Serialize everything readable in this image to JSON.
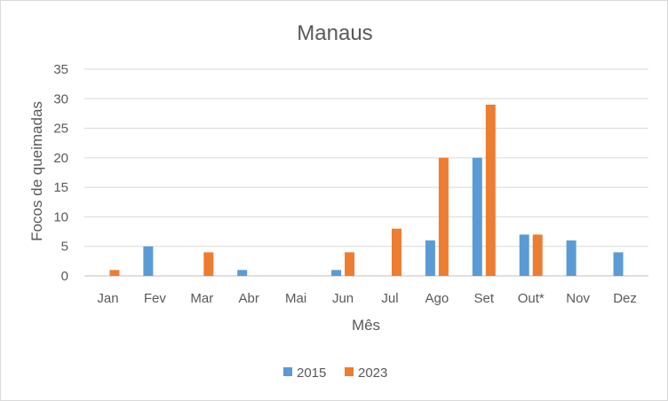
{
  "chart_data": {
    "type": "bar",
    "title": "Manaus",
    "xlabel": "Mês",
    "ylabel": "Focos de queimadas",
    "categories": [
      "Jan",
      "Fev",
      "Mar",
      "Abr",
      "Mai",
      "Jun",
      "Jul",
      "Ago",
      "Set",
      "Out*",
      "Nov",
      "Dez"
    ],
    "series": [
      {
        "name": "2015",
        "color": "#5b9bd5",
        "values": [
          0,
          5,
          0,
          1,
          0,
          1,
          0,
          6,
          20,
          7,
          6,
          4
        ]
      },
      {
        "name": "2023",
        "color": "#ed7d31",
        "values": [
          1,
          0,
          4,
          0,
          0,
          4,
          8,
          20,
          29,
          7,
          0,
          0
        ]
      }
    ],
    "ylim": [
      0,
      35
    ],
    "yticks": [
      0,
      5,
      10,
      15,
      20,
      25,
      30,
      35
    ],
    "grid": true,
    "legend_position": "bottom"
  }
}
